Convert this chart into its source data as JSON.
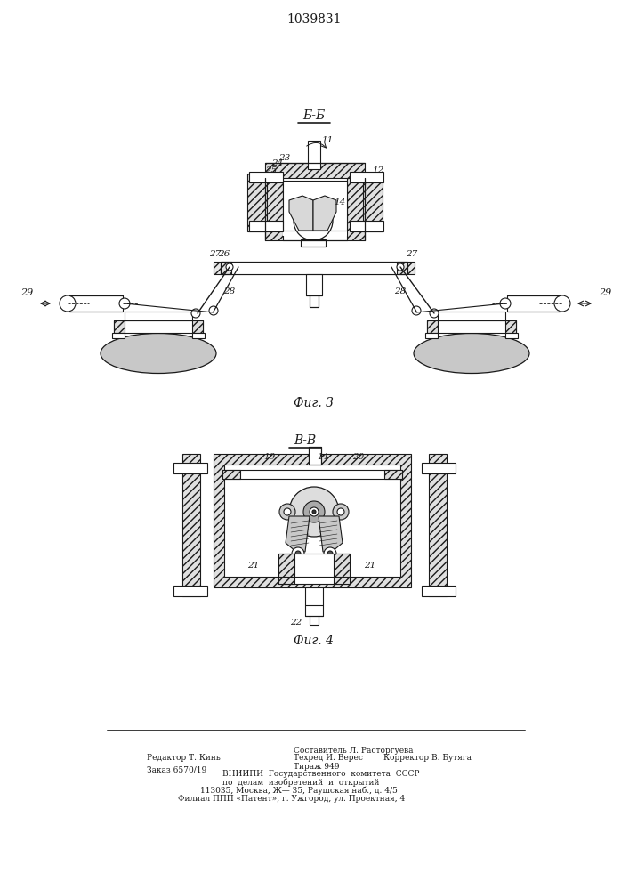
{
  "patent_number": "1039831",
  "bg": "#ffffff",
  "lc": "#1a1a1a",
  "fig3_label": "Б-Б",
  "fig3_caption": "Фиг. 3",
  "fig4_label": "В-В",
  "fig4_caption": "Фиг. 4",
  "footer": [
    [
      165,
      148,
      "Редактор Т. Кинь"
    ],
    [
      165,
      135,
      "Заказ 6570/19"
    ],
    [
      330,
      157,
      "Составитель Л. Расторгуева"
    ],
    [
      330,
      148,
      "Техред И. Верес        Корректор В. Бутяга"
    ],
    [
      330,
      139,
      "Тираж 949"
    ],
    [
      250,
      130,
      "ВНИИПИ  Государственного  комитета  СССР"
    ],
    [
      250,
      121,
      "по  делам  изобретений  и  открытий"
    ],
    [
      225,
      112,
      "113035, Москва, Ж— 35, Раушская наб., д. 4/5"
    ],
    [
      200,
      103,
      "Филиал ППП «Патент», г. Ужгород, ул. Проектная, 4"
    ]
  ]
}
